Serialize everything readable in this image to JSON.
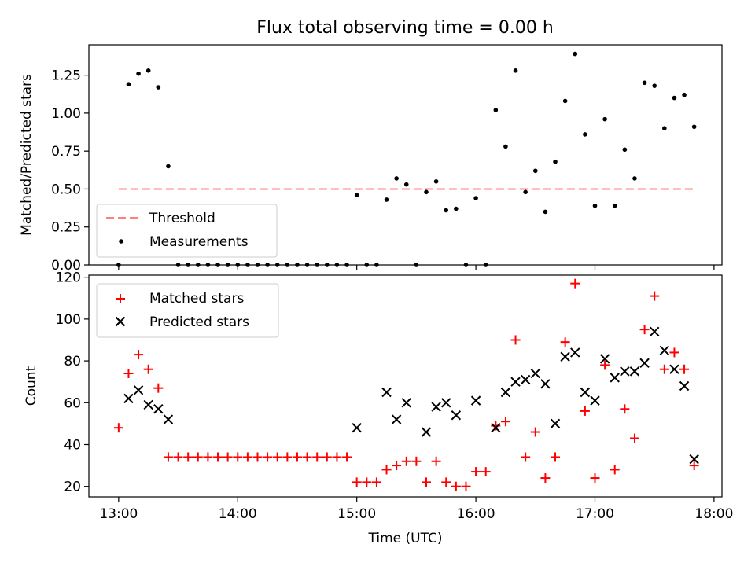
{
  "title": "Flux total observing time = 0.00 h",
  "chart_data": [
    {
      "type": "scatter",
      "ylabel": "Matched/Predicted stars",
      "ylim": [
        0,
        1.45
      ],
      "xlim": [
        "12:45",
        "18:04"
      ],
      "yticks": [
        0.0,
        0.25,
        0.5,
        0.75,
        1.0,
        1.25
      ],
      "ytick_labels": [
        "0.00",
        "0.25",
        "0.50",
        "0.75",
        "1.00",
        "1.25"
      ],
      "legend_position": "lower-left",
      "threshold": {
        "name": "Threshold",
        "value": 0.5,
        "x_range": [
          "13:00",
          "17:50"
        ],
        "color": "#ff7f7f"
      },
      "series": [
        {
          "name": "Measurements",
          "color": "#000000",
          "points": [
            [
              "13:00",
              0.0
            ],
            [
              "13:05",
              1.19
            ],
            [
              "13:10",
              1.26
            ],
            [
              "13:15",
              1.28
            ],
            [
              "13:20",
              1.17
            ],
            [
              "13:25",
              0.65
            ],
            [
              "13:30",
              0.0
            ],
            [
              "13:35",
              0.0
            ],
            [
              "13:40",
              0.0
            ],
            [
              "13:45",
              0.0
            ],
            [
              "13:50",
              0.0
            ],
            [
              "13:55",
              0.0
            ],
            [
              "14:00",
              0.0
            ],
            [
              "14:05",
              0.0
            ],
            [
              "14:10",
              0.0
            ],
            [
              "14:15",
              0.0
            ],
            [
              "14:20",
              0.0
            ],
            [
              "14:25",
              0.0
            ],
            [
              "14:30",
              0.0
            ],
            [
              "14:35",
              0.0
            ],
            [
              "14:40",
              0.0
            ],
            [
              "14:45",
              0.0
            ],
            [
              "14:50",
              0.0
            ],
            [
              "14:55",
              0.0
            ],
            [
              "15:00",
              0.46
            ],
            [
              "15:05",
              0.0
            ],
            [
              "15:10",
              0.0
            ],
            [
              "15:15",
              0.43
            ],
            [
              "15:20",
              0.57
            ],
            [
              "15:25",
              0.53
            ],
            [
              "15:30",
              0.0
            ],
            [
              "15:35",
              0.48
            ],
            [
              "15:40",
              0.55
            ],
            [
              "15:45",
              0.36
            ],
            [
              "15:50",
              0.37
            ],
            [
              "15:55",
              0.0
            ],
            [
              "16:00",
              0.44
            ],
            [
              "16:05",
              0.0
            ],
            [
              "16:10",
              1.02
            ],
            [
              "16:15",
              0.78
            ],
            [
              "16:20",
              1.28
            ],
            [
              "16:25",
              0.48
            ],
            [
              "16:30",
              0.62
            ],
            [
              "16:35",
              0.35
            ],
            [
              "16:40",
              0.68
            ],
            [
              "16:45",
              1.08
            ],
            [
              "16:50",
              1.39
            ],
            [
              "16:55",
              0.86
            ],
            [
              "17:00",
              0.39
            ],
            [
              "17:05",
              0.96
            ],
            [
              "17:10",
              0.39
            ],
            [
              "17:15",
              0.76
            ],
            [
              "17:20",
              0.57
            ],
            [
              "17:25",
              1.2
            ],
            [
              "17:30",
              1.18
            ],
            [
              "17:35",
              0.9
            ],
            [
              "17:40",
              1.1
            ],
            [
              "17:45",
              1.12
            ],
            [
              "17:50",
              0.91
            ]
          ]
        }
      ]
    },
    {
      "type": "scatter",
      "xlabel": "Time (UTC)",
      "ylabel": "Count",
      "ylim": [
        15,
        121
      ],
      "xlim": [
        "12:45",
        "18:04"
      ],
      "yticks": [
        20,
        40,
        60,
        80,
        100,
        120
      ],
      "xticks": [
        "13:00",
        "14:00",
        "15:00",
        "16:00",
        "17:00",
        "18:00"
      ],
      "legend_position": "upper-left",
      "series": [
        {
          "name": "Matched stars",
          "marker": "plus",
          "color": "#ff0000",
          "points": [
            [
              "13:00",
              48
            ],
            [
              "13:05",
              74
            ],
            [
              "13:10",
              83
            ],
            [
              "13:15",
              76
            ],
            [
              "13:20",
              67
            ],
            [
              "13:25",
              34
            ],
            [
              "13:30",
              34
            ],
            [
              "13:35",
              34
            ],
            [
              "13:40",
              34
            ],
            [
              "13:45",
              34
            ],
            [
              "13:50",
              34
            ],
            [
              "13:55",
              34
            ],
            [
              "14:00",
              34
            ],
            [
              "14:05",
              34
            ],
            [
              "14:10",
              34
            ],
            [
              "14:15",
              34
            ],
            [
              "14:20",
              34
            ],
            [
              "14:25",
              34
            ],
            [
              "14:30",
              34
            ],
            [
              "14:35",
              34
            ],
            [
              "14:40",
              34
            ],
            [
              "14:45",
              34
            ],
            [
              "14:50",
              34
            ],
            [
              "14:55",
              34
            ],
            [
              "15:00",
              22
            ],
            [
              "15:05",
              22
            ],
            [
              "15:10",
              22
            ],
            [
              "15:15",
              28
            ],
            [
              "15:20",
              30
            ],
            [
              "15:25",
              32
            ],
            [
              "15:30",
              32
            ],
            [
              "15:35",
              22
            ],
            [
              "15:40",
              32
            ],
            [
              "15:45",
              22
            ],
            [
              "15:50",
              20
            ],
            [
              "15:55",
              20
            ],
            [
              "16:00",
              27
            ],
            [
              "16:05",
              27
            ],
            [
              "16:10",
              49
            ],
            [
              "16:15",
              51
            ],
            [
              "16:20",
              90
            ],
            [
              "16:25",
              34
            ],
            [
              "16:30",
              46
            ],
            [
              "16:35",
              24
            ],
            [
              "16:40",
              34
            ],
            [
              "16:45",
              89
            ],
            [
              "16:50",
              117
            ],
            [
              "16:55",
              56
            ],
            [
              "17:00",
              24
            ],
            [
              "17:05",
              78
            ],
            [
              "17:10",
              28
            ],
            [
              "17:15",
              57
            ],
            [
              "17:20",
              43
            ],
            [
              "17:25",
              95
            ],
            [
              "17:30",
              111
            ],
            [
              "17:35",
              76
            ],
            [
              "17:40",
              84
            ],
            [
              "17:45",
              76
            ],
            [
              "17:50",
              30
            ]
          ]
        },
        {
          "name": "Predicted stars",
          "marker": "x",
          "color": "#000000",
          "points": [
            [
              "13:05",
              62
            ],
            [
              "13:10",
              66
            ],
            [
              "13:15",
              59
            ],
            [
              "13:20",
              57
            ],
            [
              "13:25",
              52
            ],
            [
              "15:00",
              48
            ],
            [
              "15:15",
              65
            ],
            [
              "15:20",
              52
            ],
            [
              "15:25",
              60
            ],
            [
              "15:35",
              46
            ],
            [
              "15:40",
              58
            ],
            [
              "15:45",
              60
            ],
            [
              "15:50",
              54
            ],
            [
              "16:00",
              61
            ],
            [
              "16:10",
              48
            ],
            [
              "16:15",
              65
            ],
            [
              "16:20",
              70
            ],
            [
              "16:25",
              71
            ],
            [
              "16:30",
              74
            ],
            [
              "16:35",
              69
            ],
            [
              "16:40",
              50
            ],
            [
              "16:45",
              82
            ],
            [
              "16:50",
              84
            ],
            [
              "16:55",
              65
            ],
            [
              "17:00",
              61
            ],
            [
              "17:05",
              81
            ],
            [
              "17:10",
              72
            ],
            [
              "17:15",
              75
            ],
            [
              "17:20",
              75
            ],
            [
              "17:25",
              79
            ],
            [
              "17:30",
              94
            ],
            [
              "17:35",
              85
            ],
            [
              "17:40",
              76
            ],
            [
              "17:45",
              68
            ],
            [
              "17:50",
              33
            ]
          ]
        }
      ]
    }
  ]
}
